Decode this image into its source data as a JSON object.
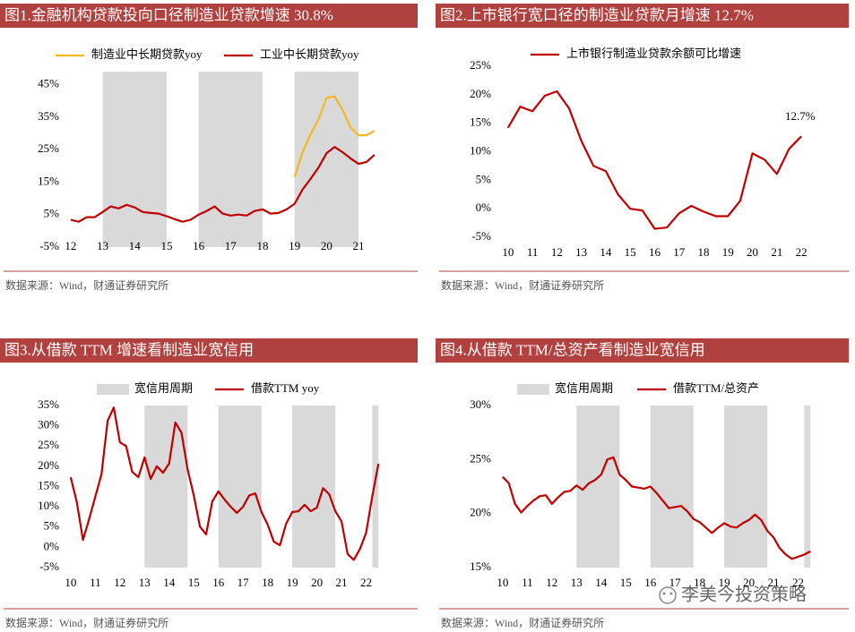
{
  "watermark": "李美今投资策略",
  "chart_data": [
    {
      "type": "line",
      "title": "图1.金融机构贷款投向口径制造业贷款增速 30.8%",
      "source": "数据来源：Wind，财通证券研究所",
      "x": [
        12,
        12.25,
        12.5,
        12.75,
        13,
        13.25,
        13.5,
        13.75,
        14,
        14.25,
        14.5,
        14.75,
        15,
        15.25,
        15.5,
        15.75,
        16,
        16.25,
        16.5,
        16.75,
        17,
        17.25,
        17.5,
        17.75,
        18,
        18.25,
        18.5,
        18.75,
        19,
        19.25,
        19.5,
        19.75,
        20,
        20.25,
        20.5,
        20.75,
        21,
        21.25,
        21.5
      ],
      "series": [
        {
          "name": "制造业中长期贷款yoy",
          "color": "#f5b820",
          "values": [
            null,
            null,
            null,
            null,
            null,
            null,
            null,
            null,
            null,
            null,
            null,
            null,
            null,
            null,
            null,
            null,
            null,
            null,
            null,
            null,
            null,
            null,
            null,
            null,
            null,
            null,
            null,
            null,
            16.5,
            24.2,
            29.7,
            34.3,
            40.9,
            41.4,
            37.3,
            31.8,
            29.4,
            29.4,
            30.8
          ]
        },
        {
          "name": "工业中长期贷款yoy",
          "color": "#c00000",
          "values": [
            3.4,
            2.8,
            4.2,
            4.2,
            5.8,
            7.5,
            6.9,
            8,
            7.2,
            5.8,
            5.5,
            5.3,
            4.5,
            3.6,
            2.8,
            3.4,
            5,
            6.1,
            7.5,
            5.3,
            4.7,
            5,
            4.7,
            6.1,
            6.6,
            5.3,
            5.5,
            6.6,
            8.3,
            12.7,
            16,
            19.5,
            23.9,
            25.8,
            24.2,
            22.3,
            20.6,
            21.2,
            23.4
          ]
        }
      ],
      "bands": {
        "color": "#d9d9d9",
        "ranges": [
          [
            13,
            15
          ],
          [
            16,
            18
          ],
          [
            19,
            21
          ]
        ]
      },
      "xlim": [
        11.75,
        21.7
      ],
      "xticks": [
        12,
        13,
        14,
        15,
        16,
        17,
        18,
        19,
        20,
        21
      ],
      "ylim": [
        -5,
        49
      ],
      "yticks": [
        {
          "value": -5,
          "label": "-5%"
        },
        {
          "value": 5,
          "label": "5%"
        },
        {
          "value": 15,
          "label": "15%"
        },
        {
          "value": 25,
          "label": "25%"
        },
        {
          "value": 35,
          "label": "35%"
        },
        {
          "value": 45,
          "label": "45%"
        }
      ]
    },
    {
      "type": "line",
      "title": "图2.上市银行宽口径的制造业贷款月增速 12.7%",
      "source": "数据来源：Wind，财通证券研究所",
      "x": [
        10,
        10.5,
        11,
        11.5,
        12,
        12.5,
        13,
        13.5,
        14,
        14.5,
        15,
        15.5,
        16,
        16.5,
        17,
        17.5,
        18,
        18.5,
        19,
        19.5,
        20,
        20.5,
        21,
        21.5,
        22
      ],
      "series": [
        {
          "name": "上市银行制造业贷款余额可比增速",
          "color": "#c00000",
          "values": [
            14.2,
            17.9,
            17.1,
            19.8,
            20.6,
            17.6,
            11.9,
            7.5,
            6.6,
            2.5,
            0,
            -0.3,
            -3.5,
            -3.3,
            -0.8,
            0.5,
            -0.5,
            -1.3,
            -1.3,
            1.4,
            9.7,
            8.6,
            6.1,
            10.5,
            12.7
          ]
        }
      ],
      "annotation": "12.7%",
      "xlim": [
        9.75,
        22.4
      ],
      "xticks": [
        10,
        11,
        12,
        13,
        14,
        15,
        16,
        17,
        18,
        19,
        20,
        21,
        22
      ],
      "ylim": [
        -6,
        26
      ],
      "yticks": [
        {
          "value": -5,
          "label": "-5%"
        },
        {
          "value": 0,
          "label": "0%"
        },
        {
          "value": 5,
          "label": "5%"
        },
        {
          "value": 10,
          "label": "10%"
        },
        {
          "value": 15,
          "label": "15%"
        },
        {
          "value": 20,
          "label": "20%"
        },
        {
          "value": 25,
          "label": "25%"
        }
      ]
    },
    {
      "type": "line",
      "title": "图3.从借款 TTM 增速看制造业宽信用",
      "source": "数据来源：Wind，财通证券研究所",
      "x": [
        10,
        10.25,
        10.5,
        10.75,
        11,
        11.25,
        11.5,
        11.75,
        12,
        12.25,
        12.5,
        12.75,
        13,
        13.25,
        13.5,
        13.75,
        14,
        14.25,
        14.5,
        14.75,
        15,
        15.25,
        15.5,
        15.75,
        16,
        16.25,
        16.5,
        16.75,
        17,
        17.25,
        17.5,
        17.75,
        18,
        18.25,
        18.5,
        18.75,
        19,
        19.25,
        19.5,
        19.75,
        20,
        20.25,
        20.5,
        20.75,
        21,
        21.25,
        21.5,
        21.75,
        22,
        22.25,
        22.5
      ],
      "series": [
        {
          "name": "借款TTM yoy",
          "color": "#c00000",
          "values": [
            17.3,
            11.1,
            1.8,
            7,
            12.5,
            18,
            31.2,
            34.5,
            25.9,
            25,
            18.6,
            17.3,
            22.2,
            16.9,
            20,
            18.4,
            20.7,
            30.8,
            28.3,
            19.2,
            12.8,
            5.1,
            3.2,
            11.3,
            13.8,
            11.8,
            10,
            8.5,
            10,
            12.8,
            13.3,
            8.7,
            5.6,
            1.4,
            0.5,
            5.8,
            8.7,
            8.9,
            10.5,
            8.9,
            9.8,
            14.6,
            13.1,
            8.9,
            6.4,
            -1.7,
            -3.1,
            -0.4,
            3.6,
            12.6,
            20.6
          ]
        }
      ],
      "bands": {
        "name": "宽信用周期",
        "color": "#d9d9d9",
        "ranges": [
          [
            13,
            14.75
          ],
          [
            16,
            17.75
          ],
          [
            19,
            20.75
          ],
          [
            22.25,
            22.5
          ]
        ]
      },
      "xlim": [
        9.75,
        22.6
      ],
      "xticks": [
        10,
        11,
        12,
        13,
        14,
        15,
        16,
        17,
        18,
        19,
        20,
        21,
        22
      ],
      "ylim": [
        -5,
        35
      ],
      "yticks": [
        {
          "value": -5,
          "label": "-5%"
        },
        {
          "value": 0,
          "label": "0%"
        },
        {
          "value": 5,
          "label": "5%"
        },
        {
          "value": 10,
          "label": "10%"
        },
        {
          "value": 15,
          "label": "15%"
        },
        {
          "value": 20,
          "label": "20%"
        },
        {
          "value": 25,
          "label": "25%"
        },
        {
          "value": 30,
          "label": "30%"
        },
        {
          "value": 35,
          "label": "35%"
        }
      ]
    },
    {
      "type": "line",
      "title": "图4.从借款 TTM/总资产看制造业宽信用",
      "source": "数据来源：Wind，财通证券研究所",
      "x": [
        10,
        10.25,
        10.5,
        10.75,
        11,
        11.25,
        11.5,
        11.75,
        12,
        12.25,
        12.5,
        12.75,
        13,
        13.25,
        13.5,
        13.75,
        14,
        14.25,
        14.5,
        14.75,
        15,
        15.25,
        15.5,
        15.75,
        16,
        16.25,
        16.5,
        16.75,
        17,
        17.25,
        17.5,
        17.75,
        18,
        18.25,
        18.5,
        18.75,
        19,
        19.25,
        19.5,
        19.75,
        20,
        20.25,
        20.5,
        20.75,
        21,
        21.25,
        21.5,
        21.75,
        22,
        22.25,
        22.5
      ],
      "series": [
        {
          "name": "借款TTM/总资产",
          "color": "#c00000",
          "values": [
            23.4,
            22.8,
            20.9,
            20.1,
            20.7,
            21.2,
            21.6,
            21.7,
            20.9,
            21.5,
            22.0,
            22.1,
            22.6,
            22.2,
            22.8,
            23.1,
            23.6,
            25.0,
            25.2,
            23.6,
            23.1,
            22.5,
            22.4,
            22.3,
            22.5,
            21.9,
            21.2,
            20.5,
            20.6,
            20.7,
            20.2,
            19.5,
            19.2,
            18.7,
            18.2,
            18.7,
            19.1,
            18.8,
            18.7,
            19.1,
            19.4,
            19.9,
            19.4,
            18.4,
            17.8,
            16.8,
            16.2,
            15.8,
            16.0,
            16.2,
            16.5
          ]
        }
      ],
      "bands": {
        "name": "宽信用周期",
        "color": "#d9d9d9",
        "ranges": [
          [
            13,
            14.75
          ],
          [
            16,
            17.75
          ],
          [
            19,
            20.75
          ],
          [
            22.25,
            22.5
          ]
        ]
      },
      "xlim": [
        9.75,
        22.6
      ],
      "xticks": [
        10,
        11,
        12,
        13,
        14,
        15,
        16,
        17,
        18,
        19,
        20,
        21,
        22
      ],
      "ylim": [
        15,
        30
      ],
      "yticks": [
        {
          "value": 15,
          "label": "15%"
        },
        {
          "value": 20,
          "label": "20%"
        },
        {
          "value": 25,
          "label": "25%"
        },
        {
          "value": 30,
          "label": "30%"
        }
      ]
    }
  ]
}
